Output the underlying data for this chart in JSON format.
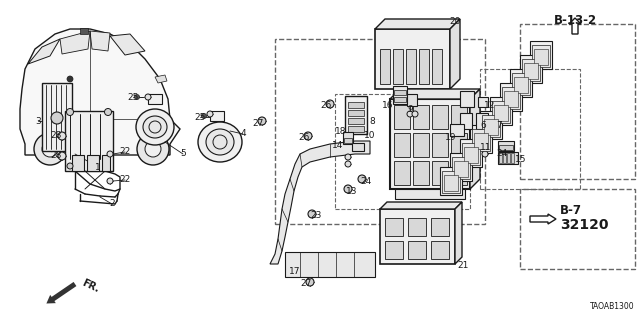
{
  "bg_color": "#ffffff",
  "line_color": "#1a1a1a",
  "diagram_code": "TAOAB1300",
  "ref_b132": "B-13-2",
  "ref_b7": "B-7",
  "ref_b7_num": "32120",
  "label_fs": 6.5,
  "bold_fs": 8.5
}
